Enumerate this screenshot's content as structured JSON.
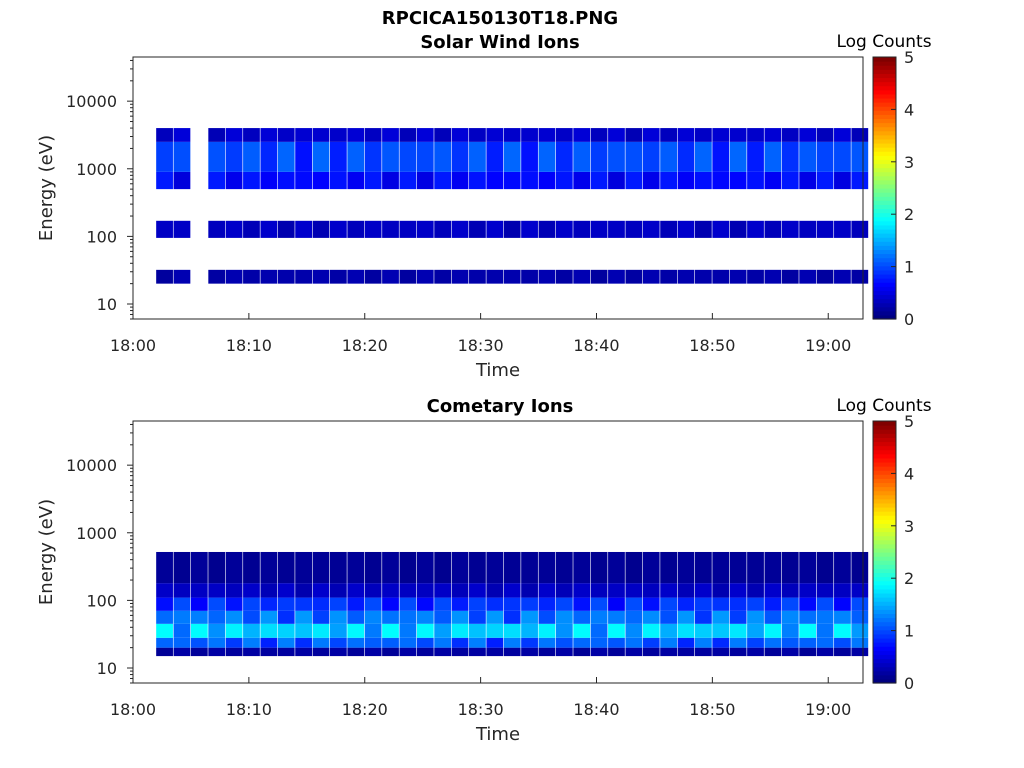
{
  "figure_title": "RPCICA150130T18.PNG",
  "chart_data": [
    {
      "type": "heatmap",
      "title": "Solar Wind Ions",
      "xlabel": "Time",
      "ylabel": "Energy (eV)",
      "x_tick_labels": [
        "18:00",
        "18:10",
        "18:20",
        "18:30",
        "18:40",
        "18:50",
        "19:00"
      ],
      "y_tick_labels": [
        "10",
        "100",
        "1000",
        "10000"
      ],
      "y_scale": "log",
      "xlim_minutes": [
        0,
        63
      ],
      "colorbar_label": "Log Counts",
      "colorbar_ticks": [
        "0",
        "1",
        "2",
        "3",
        "4",
        "5"
      ],
      "colorbar_range": [
        0,
        5
      ],
      "time_bins_minutes": [
        2,
        3.5,
        6.5,
        8,
        9.5,
        11,
        12.5,
        14,
        15.5,
        17,
        18.5,
        20,
        21.5,
        23,
        24.5,
        26,
        27.5,
        29,
        30.5,
        32,
        33.5,
        35,
        36.5,
        38,
        39.5,
        41,
        42.5,
        44,
        45.5,
        47,
        48.5,
        50,
        51.5,
        53,
        54.5,
        56,
        57.5,
        59,
        60.5,
        62
      ],
      "bands": [
        {
          "e_low": 20,
          "e_high": 32,
          "level": 0.2
        },
        {
          "e_low": 95,
          "e_high": 170,
          "level": 0.3
        },
        {
          "e_low": 500,
          "e_high": 900,
          "level": 0.6
        },
        {
          "e_low": 900,
          "e_high": 2500,
          "level": 0.9
        },
        {
          "e_low": 2500,
          "e_high": 4000,
          "level": 0.35
        }
      ]
    },
    {
      "type": "heatmap",
      "title": "Cometary Ions",
      "xlabel": "Time",
      "ylabel": "Energy (eV)",
      "x_tick_labels": [
        "18:00",
        "18:10",
        "18:20",
        "18:30",
        "18:40",
        "18:50",
        "19:00"
      ],
      "y_tick_labels": [
        "10",
        "100",
        "1000",
        "10000"
      ],
      "y_scale": "log",
      "xlim_minutes": [
        0,
        63
      ],
      "colorbar_label": "Log Counts",
      "colorbar_ticks": [
        "0",
        "1",
        "2",
        "3",
        "4",
        "5"
      ],
      "colorbar_range": [
        0,
        5
      ],
      "time_bins_minutes": [
        2,
        3.5,
        5,
        6.5,
        8,
        9.5,
        11,
        12.5,
        14,
        15.5,
        17,
        18.5,
        20,
        21.5,
        23,
        24.5,
        26,
        27.5,
        29,
        30.5,
        32,
        33.5,
        35,
        36.5,
        38,
        39.5,
        41,
        42.5,
        44,
        45.5,
        47,
        48.5,
        50,
        51.5,
        53,
        54.5,
        56,
        57.5,
        59,
        60.5,
        62
      ],
      "bands": [
        {
          "e_low": 15,
          "e_high": 20,
          "level": 0.15
        },
        {
          "e_low": 20,
          "e_high": 28,
          "level": 1.0
        },
        {
          "e_low": 28,
          "e_high": 45,
          "level": 1.5
        },
        {
          "e_low": 45,
          "e_high": 70,
          "level": 1.1
        },
        {
          "e_low": 70,
          "e_high": 110,
          "level": 0.8
        },
        {
          "e_low": 110,
          "e_high": 180,
          "level": 0.3
        },
        {
          "e_low": 180,
          "e_high": 520,
          "level": 0.1
        }
      ]
    }
  ]
}
